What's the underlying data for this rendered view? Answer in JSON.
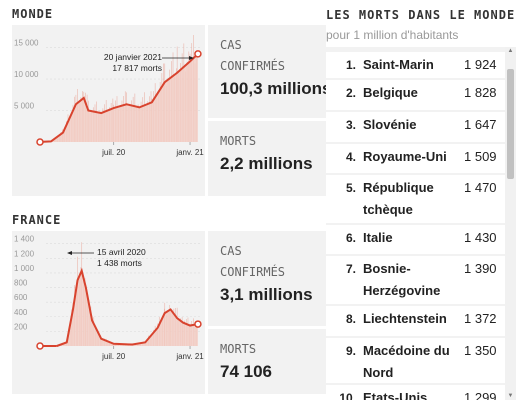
{
  "monde": {
    "title": "MONDE",
    "cases_label_1": "CAS",
    "cases_label_2": "CONFIRMÉS",
    "cases_value": "100,3 millions",
    "deaths_label": "MORTS",
    "deaths_value": "2,2 millions",
    "annotation_date": "20 janvier 2021",
    "annotation_value": "17 817 morts"
  },
  "france": {
    "title": "FRANCE",
    "cases_label_1": "CAS",
    "cases_label_2": "CONFIRMÉS",
    "cases_value": "3,1 millions",
    "deaths_label": "MORTS",
    "deaths_value": "74 106",
    "annotation_date": "15 avril 2020",
    "annotation_value": "1 438 morts"
  },
  "ranking": {
    "title": "LES MORTS DANS LE MONDE",
    "subtitle": "pour 1 million d'habitants",
    "rows": [
      {
        "rank": "1.",
        "country": "Saint-Marin",
        "value": "1 924"
      },
      {
        "rank": "2.",
        "country": "Belgique",
        "value": "1 828"
      },
      {
        "rank": "3.",
        "country": "Slovénie",
        "value": "1 647"
      },
      {
        "rank": "4.",
        "country": "Royaume-Uni",
        "value": "1 509"
      },
      {
        "rank": "5.",
        "country": "République tchèque",
        "value": "1 470"
      },
      {
        "rank": "6.",
        "country": "Italie",
        "value": "1 430"
      },
      {
        "rank": "7.",
        "country": "Bosnie-Herzégovine",
        "value": "1 390"
      },
      {
        "rank": "8.",
        "country": "Liechtenstein",
        "value": "1 372"
      },
      {
        "rank": "9.",
        "country": "Macédoine du Nord",
        "value": "1 350"
      },
      {
        "rank": "10.",
        "country": "Etats-Unis",
        "value": "1 299"
      }
    ]
  },
  "colors": {
    "line": "#d8432e",
    "area": "#f3cdc4",
    "bars": "#e9a89b",
    "panel": "#f2f2f2"
  },
  "chart_data": [
    {
      "type": "line",
      "title": "",
      "x_ticks": [
        "juil. 20",
        "janv. 21"
      ],
      "y_ticks": [
        5000,
        10000,
        15000
      ],
      "ylim": [
        0,
        17000
      ],
      "series": [
        {
          "x": [
            "2020-01",
            "2020-02",
            "2020-03",
            "2020-04",
            "2020-04-20",
            "2020-05",
            "2020-06",
            "2020-07",
            "2020-08",
            "2020-09",
            "2020-10",
            "2020-11",
            "2020-12",
            "2021-01-01",
            "2021-01-20"
          ],
          "values": [
            0,
            100,
            1500,
            6000,
            7000,
            5000,
            4600,
            5400,
            6000,
            5500,
            6300,
            9500,
            11000,
            12800,
            14000
          ]
        }
      ],
      "annotations": [
        {
          "x": "2021-01-20",
          "y": 17817,
          "text_keys": [
            "monde.annotation_date",
            "monde.annotation_value"
          ]
        }
      ],
      "grid": true
    },
    {
      "type": "line",
      "title": "",
      "x_ticks": [
        "juil. 20",
        "janv. 21"
      ],
      "y_ticks": [
        200,
        400,
        600,
        800,
        1000,
        1200,
        1400
      ],
      "ylim": [
        0,
        1450
      ],
      "series": [
        {
          "x": [
            "2020-02-15",
            "2020-03-10",
            "2020-03-25",
            "2020-04-05",
            "2020-04-15",
            "2020-04-25",
            "2020-05-10",
            "2020-06-01",
            "2020-07-01",
            "2020-08-15",
            "2020-09-15",
            "2020-10-15",
            "2020-11-01",
            "2020-11-15",
            "2020-12-01",
            "2020-12-15",
            "2021-01-01",
            "2021-01-20"
          ],
          "values": [
            0,
            50,
            500,
            900,
            1030,
            800,
            350,
            100,
            30,
            20,
            50,
            250,
            450,
            500,
            380,
            320,
            280,
            300
          ]
        }
      ],
      "annotations": [
        {
          "x": "2020-04-15",
          "y": 1438,
          "text_keys": [
            "france.annotation_date",
            "france.annotation_value"
          ]
        }
      ],
      "grid": true
    }
  ]
}
